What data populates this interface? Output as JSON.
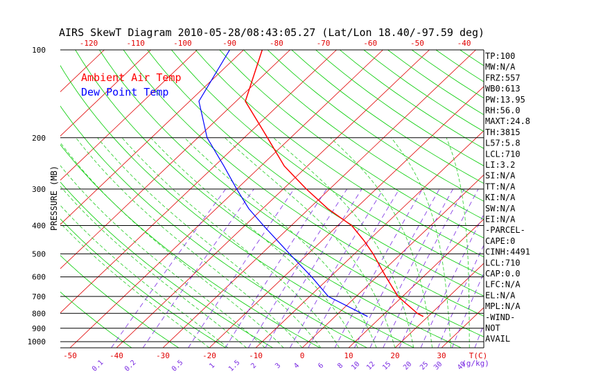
{
  "chart_data": {
    "type": "line",
    "title": "AIRS SkewT Diagram 2010-05-28/08:43:05.27 (Lat/Lon 18.40/-97.59 deg)",
    "ylabel": "PRESSURE (MB)",
    "y_scale": "log",
    "ylim": [
      1050,
      100
    ],
    "pressure_ticks": [
      100,
      200,
      300,
      400,
      500,
      600,
      700,
      800,
      900,
      1000
    ],
    "bottom_temp_ticks": [
      -50,
      -40,
      -30,
      -20,
      -10,
      0,
      10,
      20,
      30
    ],
    "bottom_temp_unit": "T(C)",
    "top_temp_ticks": [
      -120,
      -110,
      -100,
      -90,
      -80,
      -70,
      -60,
      -50,
      -40
    ],
    "mixing_ratio_labels": [
      "0.1",
      "0.2",
      "0.5",
      "1",
      "1.5",
      "2",
      "3",
      "4",
      "6",
      "8",
      "10",
      "12",
      "15",
      "20",
      "25",
      "30",
      "40"
    ],
    "mixing_ratio_unit": "(g/kg)",
    "legend": [
      {
        "name": "Ambient Air Temp",
        "color": "#ff0000"
      },
      {
        "name": "Dew Point Temp",
        "color": "#0000ff"
      }
    ],
    "series": [
      {
        "name": "Ambient Air Temp",
        "color": "#ff0000",
        "points": [
          {
            "p": 100,
            "t": -76
          },
          {
            "p": 150,
            "t": -68
          },
          {
            "p": 200,
            "t": -55
          },
          {
            "p": 250,
            "t": -45
          },
          {
            "p": 300,
            "t": -35
          },
          {
            "p": 350,
            "t": -26
          },
          {
            "p": 400,
            "t": -17
          },
          {
            "p": 450,
            "t": -11
          },
          {
            "p": 500,
            "t": -6
          },
          {
            "p": 600,
            "t": 2
          },
          {
            "p": 700,
            "t": 9
          },
          {
            "p": 800,
            "t": 17
          },
          {
            "p": 820,
            "t": 19
          }
        ]
      },
      {
        "name": "Dew Point Temp",
        "color": "#0000ff",
        "points": [
          {
            "p": 100,
            "t": -83
          },
          {
            "p": 150,
            "t": -78
          },
          {
            "p": 200,
            "t": -68
          },
          {
            "p": 250,
            "t": -58
          },
          {
            "p": 300,
            "t": -50
          },
          {
            "p": 350,
            "t": -43
          },
          {
            "p": 400,
            "t": -36
          },
          {
            "p": 500,
            "t": -24
          },
          {
            "p": 600,
            "t": -14
          },
          {
            "p": 700,
            "t": -6
          },
          {
            "p": 800,
            "t": 5
          },
          {
            "p": 820,
            "t": 7
          }
        ]
      }
    ]
  },
  "indices": [
    "TP:100",
    "MW:N/A",
    "FRZ:557",
    "WB0:613",
    "PW:13.95",
    "RH:56.0",
    "MAXT:24.8",
    "TH:3815",
    "L57:5.8",
    "LCL:710",
    "LI:3.2",
    "SI:N/A",
    "TT:N/A",
    "KI:N/A",
    "SW:N/A",
    "EI:N/A",
    "-PARCEL-",
    "CAPE:0",
    "CINH:4491",
    "LCL:710",
    "CAP:0.0",
    "LFC:N/A",
    "EL:N/A",
    "MPL:N/A",
    "-WIND-",
    "NOT",
    "AVAIL"
  ],
  "colors": {
    "isotherm": "#e00000",
    "dry_adiabat": "#00cc00",
    "moist_adiabat": "#22cc22",
    "mixing_ratio": "#7a2be2",
    "axis": "#000000",
    "title": "#000000"
  }
}
